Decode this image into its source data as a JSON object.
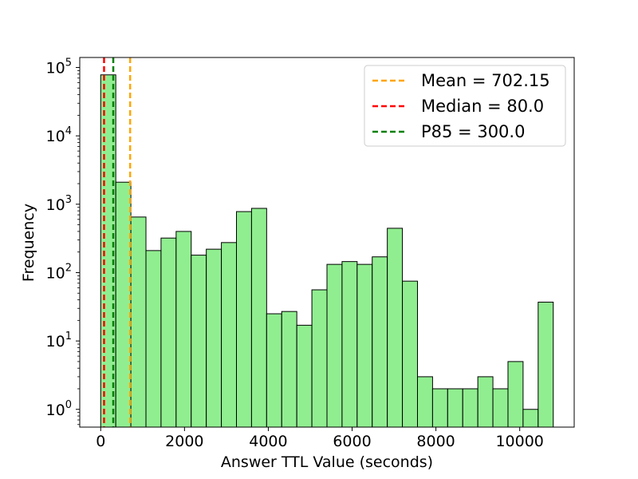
{
  "chart_data": {
    "type": "bar",
    "title": "",
    "xlabel": "Answer TTL Value (seconds)",
    "ylabel": "Frequency",
    "xlim": [
      -500,
      11300
    ],
    "ylim": [
      0.55,
      140000
    ],
    "yscale": "log",
    "grid": false,
    "legend_position": "top-right",
    "bar_color": "#90ee90",
    "bar_edge_color": "#000000",
    "bins": [
      {
        "x0": 0,
        "x1": 360,
        "count": 78000
      },
      {
        "x0": 360,
        "x1": 720,
        "count": 2100
      },
      {
        "x0": 720,
        "x1": 1080,
        "count": 650
      },
      {
        "x0": 1080,
        "x1": 1440,
        "count": 210
      },
      {
        "x0": 1440,
        "x1": 1800,
        "count": 320
      },
      {
        "x0": 1800,
        "x1": 2160,
        "count": 400
      },
      {
        "x0": 2160,
        "x1": 2520,
        "count": 180
      },
      {
        "x0": 2520,
        "x1": 2880,
        "count": 220
      },
      {
        "x0": 2880,
        "x1": 3240,
        "count": 275
      },
      {
        "x0": 3240,
        "x1": 3600,
        "count": 780
      },
      {
        "x0": 3600,
        "x1": 3960,
        "count": 870
      },
      {
        "x0": 3960,
        "x1": 4320,
        "count": 25
      },
      {
        "x0": 4320,
        "x1": 4680,
        "count": 27
      },
      {
        "x0": 4680,
        "x1": 5040,
        "count": 17
      },
      {
        "x0": 5040,
        "x1": 5400,
        "count": 56
      },
      {
        "x0": 5400,
        "x1": 5760,
        "count": 132
      },
      {
        "x0": 5760,
        "x1": 6120,
        "count": 145
      },
      {
        "x0": 6120,
        "x1": 6480,
        "count": 132
      },
      {
        "x0": 6480,
        "x1": 6840,
        "count": 170
      },
      {
        "x0": 6840,
        "x1": 7200,
        "count": 445
      },
      {
        "x0": 7200,
        "x1": 7560,
        "count": 75
      },
      {
        "x0": 7560,
        "x1": 7920,
        "count": 3
      },
      {
        "x0": 7920,
        "x1": 8280,
        "count": 2
      },
      {
        "x0": 8280,
        "x1": 8640,
        "count": 2
      },
      {
        "x0": 8640,
        "x1": 9000,
        "count": 2
      },
      {
        "x0": 9000,
        "x1": 9360,
        "count": 3
      },
      {
        "x0": 9360,
        "x1": 9720,
        "count": 2
      },
      {
        "x0": 9720,
        "x1": 10080,
        "count": 5
      },
      {
        "x0": 10080,
        "x1": 10440,
        "count": 1
      },
      {
        "x0": 10440,
        "x1": 10800,
        "count": 37
      }
    ],
    "x_ticks": [
      {
        "value": 0,
        "label": "0"
      },
      {
        "value": 2000,
        "label": "2000"
      },
      {
        "value": 4000,
        "label": "4000"
      },
      {
        "value": 6000,
        "label": "6000"
      },
      {
        "value": 8000,
        "label": "8000"
      },
      {
        "value": 10000,
        "label": "10000"
      }
    ],
    "y_ticks": [
      {
        "value": 1,
        "base": "10",
        "exp": "0"
      },
      {
        "value": 10,
        "base": "10",
        "exp": "1"
      },
      {
        "value": 100,
        "base": "10",
        "exp": "2"
      },
      {
        "value": 1000,
        "base": "10",
        "exp": "3"
      },
      {
        "value": 10000,
        "base": "10",
        "exp": "4"
      },
      {
        "value": 100000,
        "base": "10",
        "exp": "5"
      }
    ],
    "reference_lines": [
      {
        "name": "Mean = 702.15",
        "value": 702.15,
        "color": "#ffa500"
      },
      {
        "name": "Median = 80.0",
        "value": 80.0,
        "color": "#ff0000"
      },
      {
        "name": "P85 = 300.0",
        "value": 300.0,
        "color": "#008000"
      }
    ]
  }
}
